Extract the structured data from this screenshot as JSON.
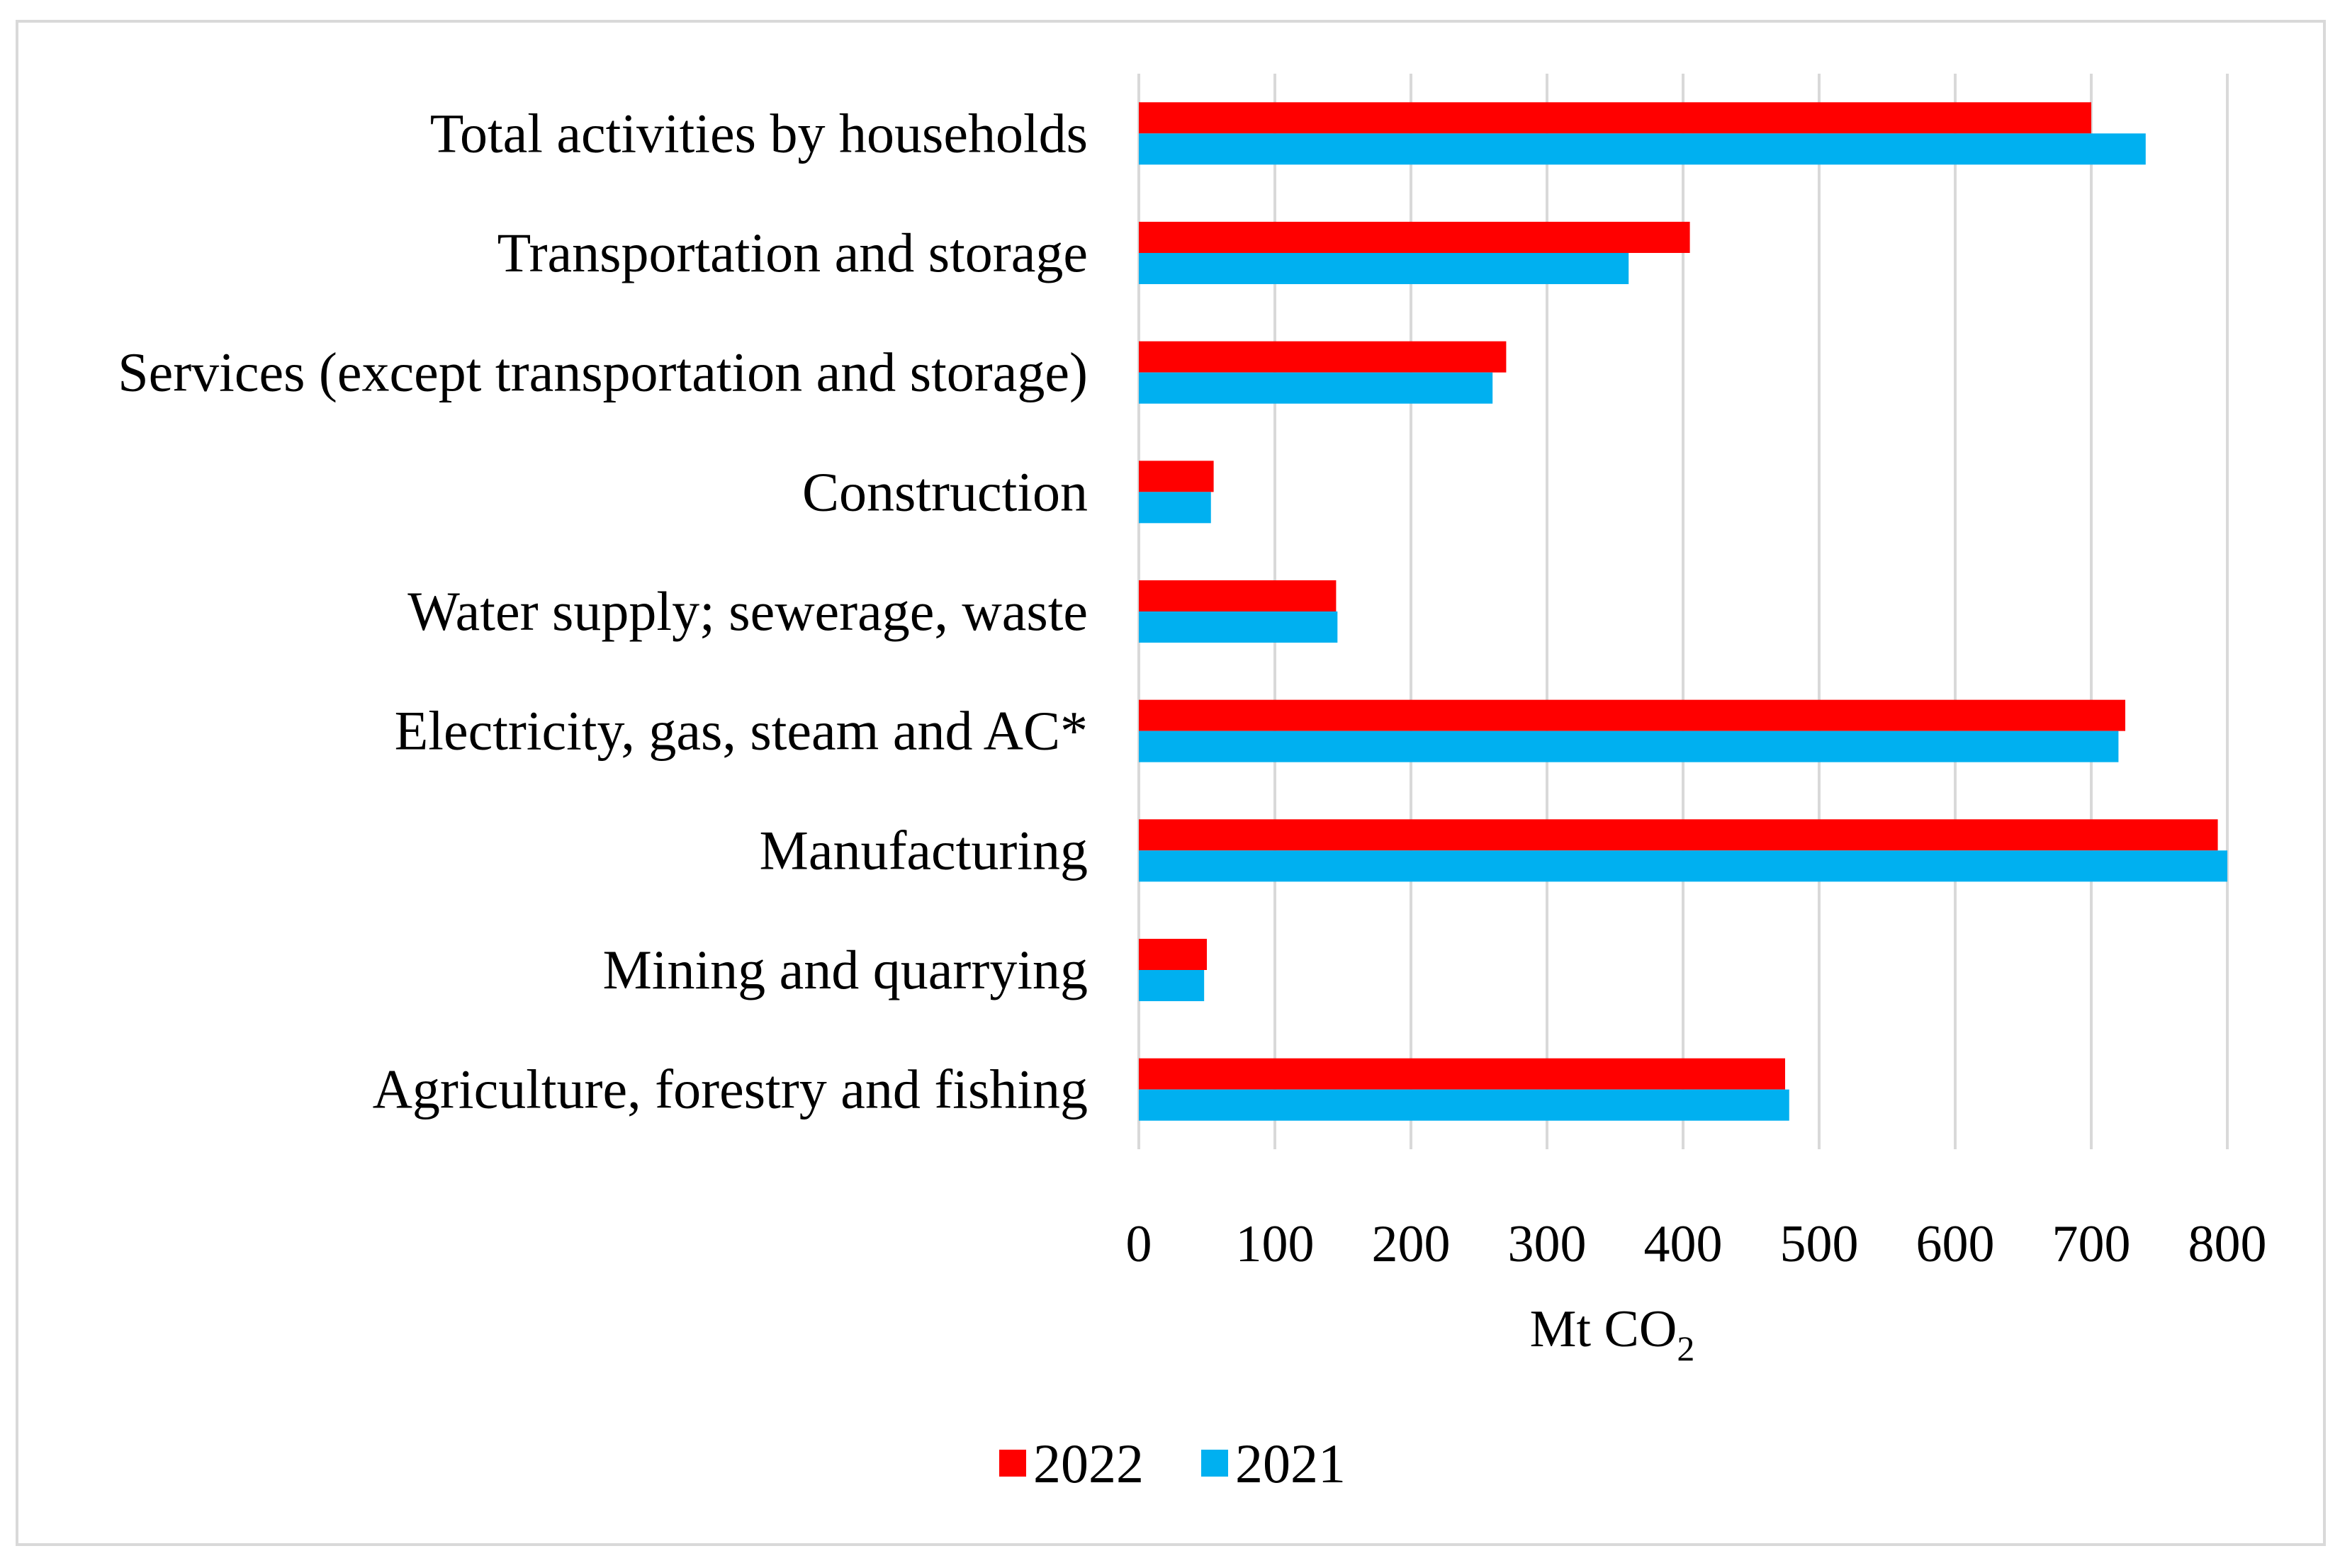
{
  "chart_data": {
    "type": "bar",
    "orientation": "horizontal",
    "title": "",
    "categories": [
      "Agriculture, forestry and fishing",
      "Mining and quarrying",
      "Manufacturing",
      "Electricity, gas, steam and AC*",
      "Water supply; sewerage, waste",
      "Construction",
      "Services (except transportation and storage)",
      "Transportation and storage",
      "Total activities by households"
    ],
    "series": [
      {
        "name": "2022",
        "color": "#ff0000",
        "values": [
          475,
          50,
          793,
          725,
          145,
          55,
          270,
          405,
          700
        ]
      },
      {
        "name": "2021",
        "color": "#00b0f0",
        "values": [
          478,
          48,
          800,
          720,
          146,
          53,
          260,
          360,
          740
        ]
      }
    ],
    "xlabel": {
      "main": "Mt CO",
      "subscript": "2"
    },
    "ylabel": "",
    "xlim": [
      0,
      800
    ],
    "xticks": [
      0,
      100,
      200,
      300,
      400,
      500,
      600,
      700,
      800
    ],
    "grid": "vertical",
    "legend_position": "bottom-center",
    "colors": {
      "gridline": "#d9d9d9",
      "frame": "#d9d9d9",
      "axis": "#d9d9d9"
    }
  }
}
